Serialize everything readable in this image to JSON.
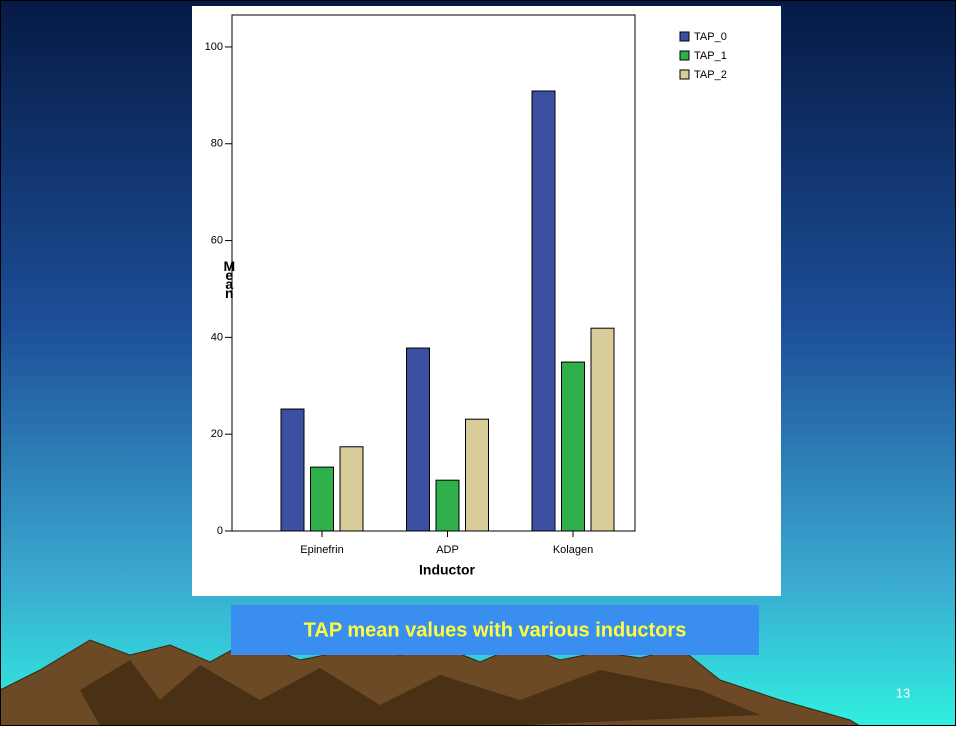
{
  "slide_number": "13",
  "chart_data": {
    "type": "bar",
    "title": "TAP  mean values with various inductors",
    "x_label": "Inductor",
    "y_label": "Mean",
    "categories": [
      "Epinefrin",
      "ADP",
      "Kolagen"
    ],
    "series": [
      {
        "name": "TAP_0",
        "color": "#3d4fa3",
        "values": [
          25.2,
          37.8,
          90.9
        ]
      },
      {
        "name": "TAP_1",
        "color": "#2fb04a",
        "values": [
          13.2,
          10.5,
          34.9
        ]
      },
      {
        "name": "TAP_2",
        "color": "#d7cc9a",
        "values": [
          17.4,
          23.1,
          41.9
        ]
      }
    ],
    "ylim": [
      0,
      106.6
    ],
    "yticks": [
      0,
      20,
      40,
      60,
      80,
      100
    ],
    "legend": "top-right"
  }
}
